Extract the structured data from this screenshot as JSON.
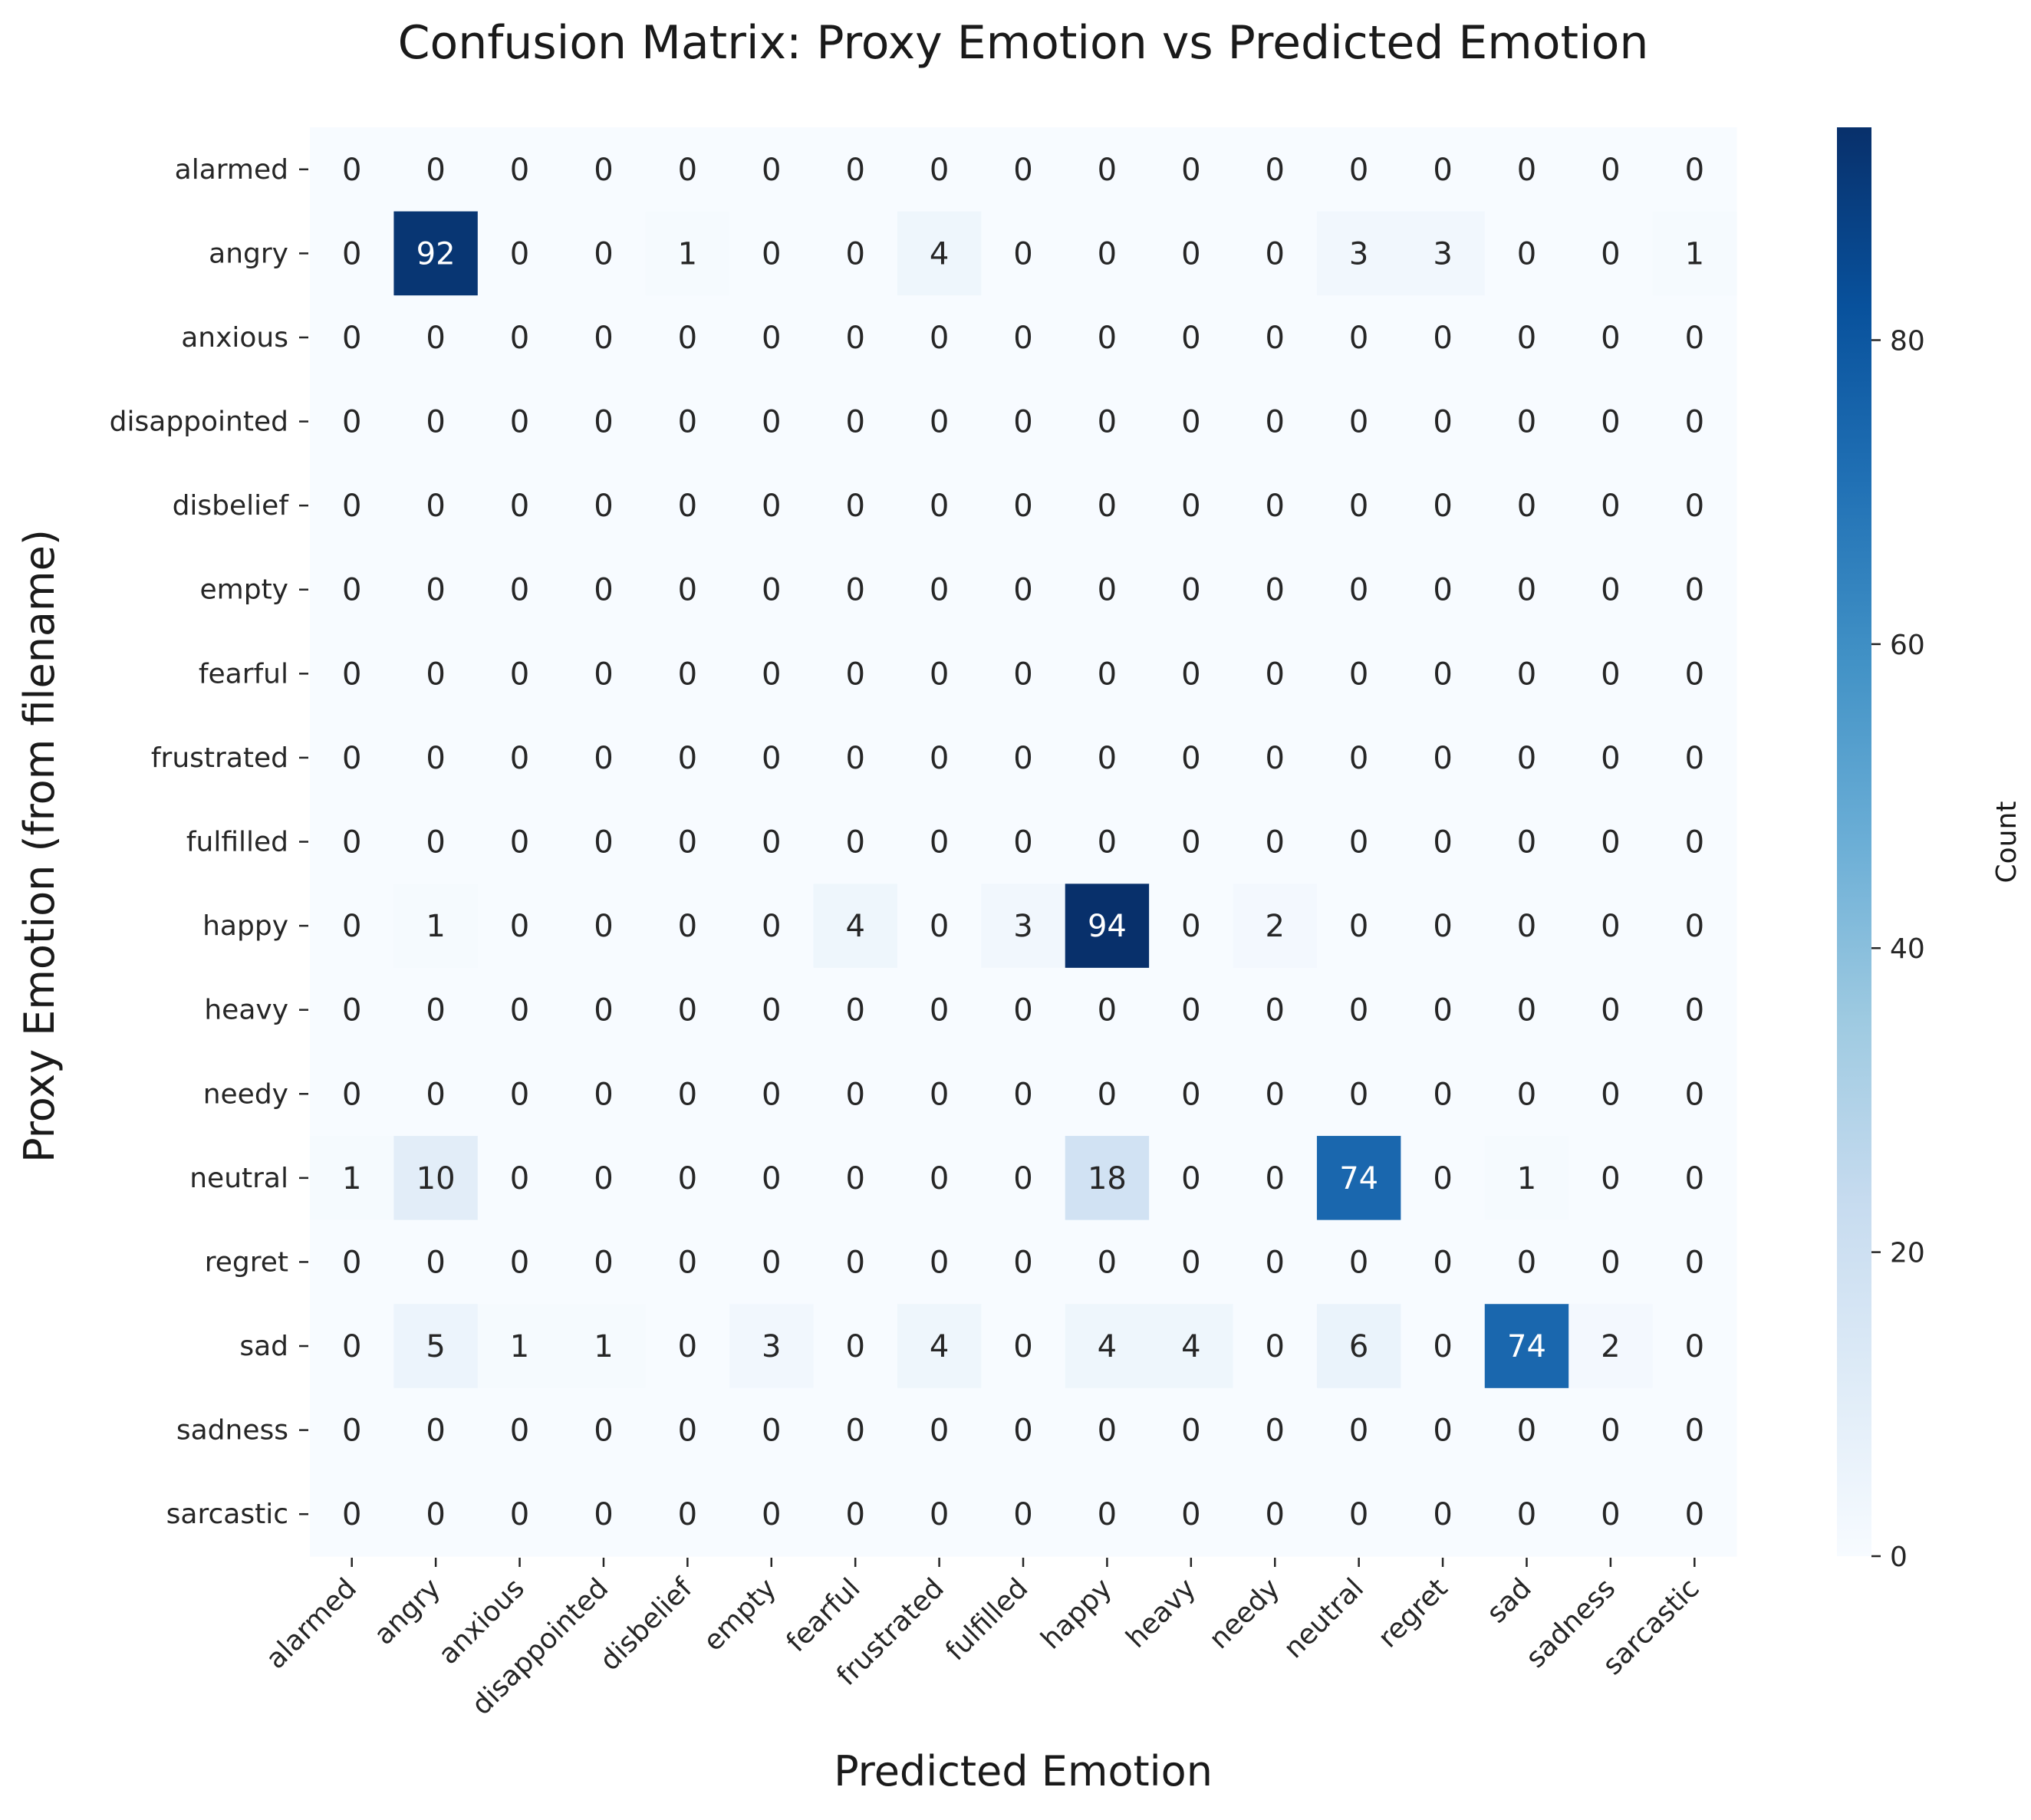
{
  "chart_data": {
    "type": "heatmap",
    "title": "Confusion Matrix: Proxy Emotion vs Predicted Emotion",
    "xlabel": "Predicted Emotion",
    "ylabel": "Proxy Emotion (from filename)",
    "colorbar_label": "Count",
    "colormap": "Blues",
    "vmin": 0,
    "vmax": 94,
    "colorbar_ticks": [
      0,
      20,
      40,
      60,
      80
    ],
    "x_categories": [
      "alarmed",
      "angry",
      "anxious",
      "disappointed",
      "disbelief",
      "empty",
      "fearful",
      "frustrated",
      "fulfilled",
      "happy",
      "heavy",
      "needy",
      "neutral",
      "regret",
      "sad",
      "sadness",
      "sarcastic"
    ],
    "y_categories": [
      "alarmed",
      "angry",
      "anxious",
      "disappointed",
      "disbelief",
      "empty",
      "fearful",
      "frustrated",
      "fulfilled",
      "happy",
      "heavy",
      "needy",
      "neutral",
      "regret",
      "sad",
      "sadness",
      "sarcastic"
    ],
    "matrix": [
      [
        0,
        0,
        0,
        0,
        0,
        0,
        0,
        0,
        0,
        0,
        0,
        0,
        0,
        0,
        0,
        0,
        0
      ],
      [
        0,
        92,
        0,
        0,
        1,
        0,
        0,
        4,
        0,
        0,
        0,
        0,
        3,
        3,
        0,
        0,
        1
      ],
      [
        0,
        0,
        0,
        0,
        0,
        0,
        0,
        0,
        0,
        0,
        0,
        0,
        0,
        0,
        0,
        0,
        0
      ],
      [
        0,
        0,
        0,
        0,
        0,
        0,
        0,
        0,
        0,
        0,
        0,
        0,
        0,
        0,
        0,
        0,
        0
      ],
      [
        0,
        0,
        0,
        0,
        0,
        0,
        0,
        0,
        0,
        0,
        0,
        0,
        0,
        0,
        0,
        0,
        0
      ],
      [
        0,
        0,
        0,
        0,
        0,
        0,
        0,
        0,
        0,
        0,
        0,
        0,
        0,
        0,
        0,
        0,
        0
      ],
      [
        0,
        0,
        0,
        0,
        0,
        0,
        0,
        0,
        0,
        0,
        0,
        0,
        0,
        0,
        0,
        0,
        0
      ],
      [
        0,
        0,
        0,
        0,
        0,
        0,
        0,
        0,
        0,
        0,
        0,
        0,
        0,
        0,
        0,
        0,
        0
      ],
      [
        0,
        0,
        0,
        0,
        0,
        0,
        0,
        0,
        0,
        0,
        0,
        0,
        0,
        0,
        0,
        0,
        0
      ],
      [
        0,
        1,
        0,
        0,
        0,
        0,
        4,
        0,
        3,
        94,
        0,
        2,
        0,
        0,
        0,
        0,
        0
      ],
      [
        0,
        0,
        0,
        0,
        0,
        0,
        0,
        0,
        0,
        0,
        0,
        0,
        0,
        0,
        0,
        0,
        0
      ],
      [
        0,
        0,
        0,
        0,
        0,
        0,
        0,
        0,
        0,
        0,
        0,
        0,
        0,
        0,
        0,
        0,
        0
      ],
      [
        1,
        10,
        0,
        0,
        0,
        0,
        0,
        0,
        0,
        18,
        0,
        0,
        74,
        0,
        1,
        0,
        0
      ],
      [
        0,
        0,
        0,
        0,
        0,
        0,
        0,
        0,
        0,
        0,
        0,
        0,
        0,
        0,
        0,
        0,
        0
      ],
      [
        0,
        5,
        1,
        1,
        0,
        3,
        0,
        4,
        0,
        4,
        4,
        0,
        6,
        0,
        74,
        2,
        0
      ],
      [
        0,
        0,
        0,
        0,
        0,
        0,
        0,
        0,
        0,
        0,
        0,
        0,
        0,
        0,
        0,
        0,
        0
      ],
      [
        0,
        0,
        0,
        0,
        0,
        0,
        0,
        0,
        0,
        0,
        0,
        0,
        0,
        0,
        0,
        0,
        0
      ]
    ]
  }
}
